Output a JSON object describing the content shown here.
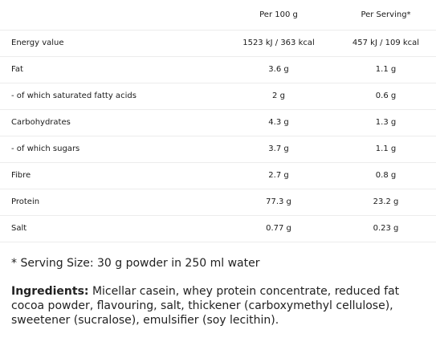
{
  "table": {
    "headers": {
      "label": "",
      "per100": "Per 100 g",
      "serving": "Per Serving*"
    },
    "rows": [
      {
        "label": "Energy value",
        "per100": "1523 kJ / 363 kcal",
        "serving": "457 kJ / 109 kcal"
      },
      {
        "label": "Fat",
        "per100": "3.6 g",
        "serving": "1.1 g"
      },
      {
        "label": "- of which saturated fatty acids",
        "per100": "2 g",
        "serving": "0.6 g"
      },
      {
        "label": "Carbohydrates",
        "per100": "4.3 g",
        "serving": "1.3 g"
      },
      {
        "label": "- of which sugars",
        "per100": "3.7 g",
        "serving": "1.1 g"
      },
      {
        "label": "Fibre",
        "per100": "2.7 g",
        "serving": "0.8 g"
      },
      {
        "label": "Protein",
        "per100": "77.3 g",
        "serving": "23.2 g"
      },
      {
        "label": "Salt",
        "per100": "0.77 g",
        "serving": "0.23 g"
      }
    ]
  },
  "footnote": "* Serving Size: 30 g powder in 250 ml water",
  "ingredients": {
    "label": "Ingredients:",
    "text": " Micellar casein, whey protein concentrate, reduced fat cocoa powder, flavouring, salt, thickener (carboxymethyl cellulose), sweetener (sucralose), emulsifier (soy lecithin)."
  }
}
